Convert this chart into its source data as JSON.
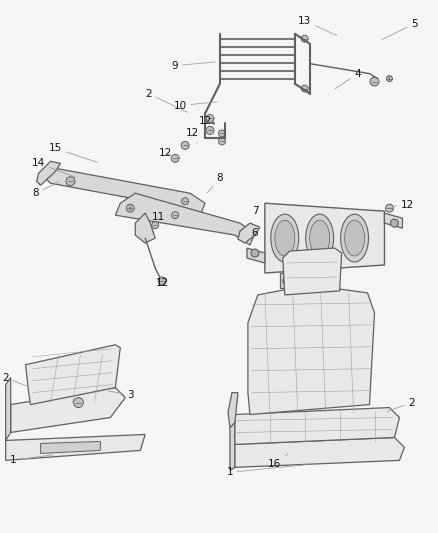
{
  "background_color": "#f5f5f5",
  "fig_width": 4.38,
  "fig_height": 5.33,
  "dpi": 100,
  "label_fontsize": 7.5,
  "line_color": "#4a4a4a",
  "light_gray": "#c8c8c8",
  "mid_gray": "#a0a0a0",
  "dark_gray": "#606060",
  "fill_gray": "#d8d8d8",
  "fill_light": "#e8e8e8"
}
